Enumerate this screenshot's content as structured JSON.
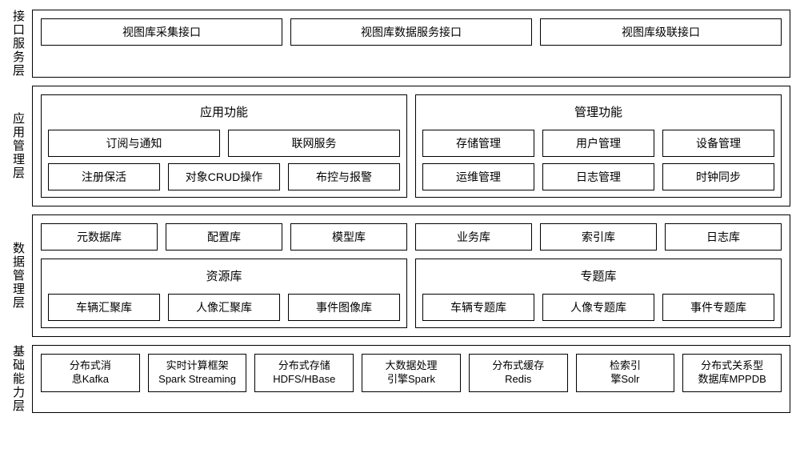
{
  "colors": {
    "border": "#000000",
    "background": "#ffffff",
    "text": "#000000"
  },
  "layers": {
    "l1": {
      "label": "接口服务层",
      "items": [
        "视图库采集接口",
        "视图库数据服务接口",
        "视图库级联接口"
      ]
    },
    "l2": {
      "label": "应用管理层",
      "groups": {
        "app": {
          "title": "应用功能",
          "row1": [
            "订阅与通知",
            "联网服务"
          ],
          "row2": [
            "注册保活",
            "对象CRUD操作",
            "布控与报警"
          ]
        },
        "mgmt": {
          "title": "管理功能",
          "row1": [
            "存储管理",
            "用户管理",
            "设备管理"
          ],
          "row2": [
            "运维管理",
            "日志管理",
            "时钟同步"
          ]
        }
      }
    },
    "l3": {
      "label": "数据管理层",
      "top_row": [
        "元数据库",
        "配置库",
        "模型库",
        "业务库",
        "索引库",
        "日志库"
      ],
      "groups": {
        "resource": {
          "title": "资源库",
          "items": [
            "车辆汇聚库",
            "人像汇聚库",
            "事件图像库"
          ]
        },
        "topic": {
          "title": "专题库",
          "items": [
            "车辆专题库",
            "人像专题库",
            "事件专题库"
          ]
        }
      }
    },
    "l4": {
      "label": "基础能力层",
      "items": [
        "分布式消息Kafka",
        "实时计算框架Spark Streaming",
        "分布式存储HDFS/HBase",
        "大数据处理引擎Spark",
        "分布式缓存Redis",
        "检索引擎Solr",
        "分布式关系型数据库MPPDB"
      ],
      "items_split": [
        [
          "分布式消",
          "息Kafka"
        ],
        [
          "实时计算框架",
          "Spark Streaming"
        ],
        [
          "分布式存储",
          "HDFS/HBase"
        ],
        [
          "大数据处理",
          "引擎Spark"
        ],
        [
          "分布式缓存",
          "Redis"
        ],
        [
          "检索引",
          "擎Solr"
        ],
        [
          "分布式关系型",
          "数据库MPPDB"
        ]
      ]
    }
  }
}
